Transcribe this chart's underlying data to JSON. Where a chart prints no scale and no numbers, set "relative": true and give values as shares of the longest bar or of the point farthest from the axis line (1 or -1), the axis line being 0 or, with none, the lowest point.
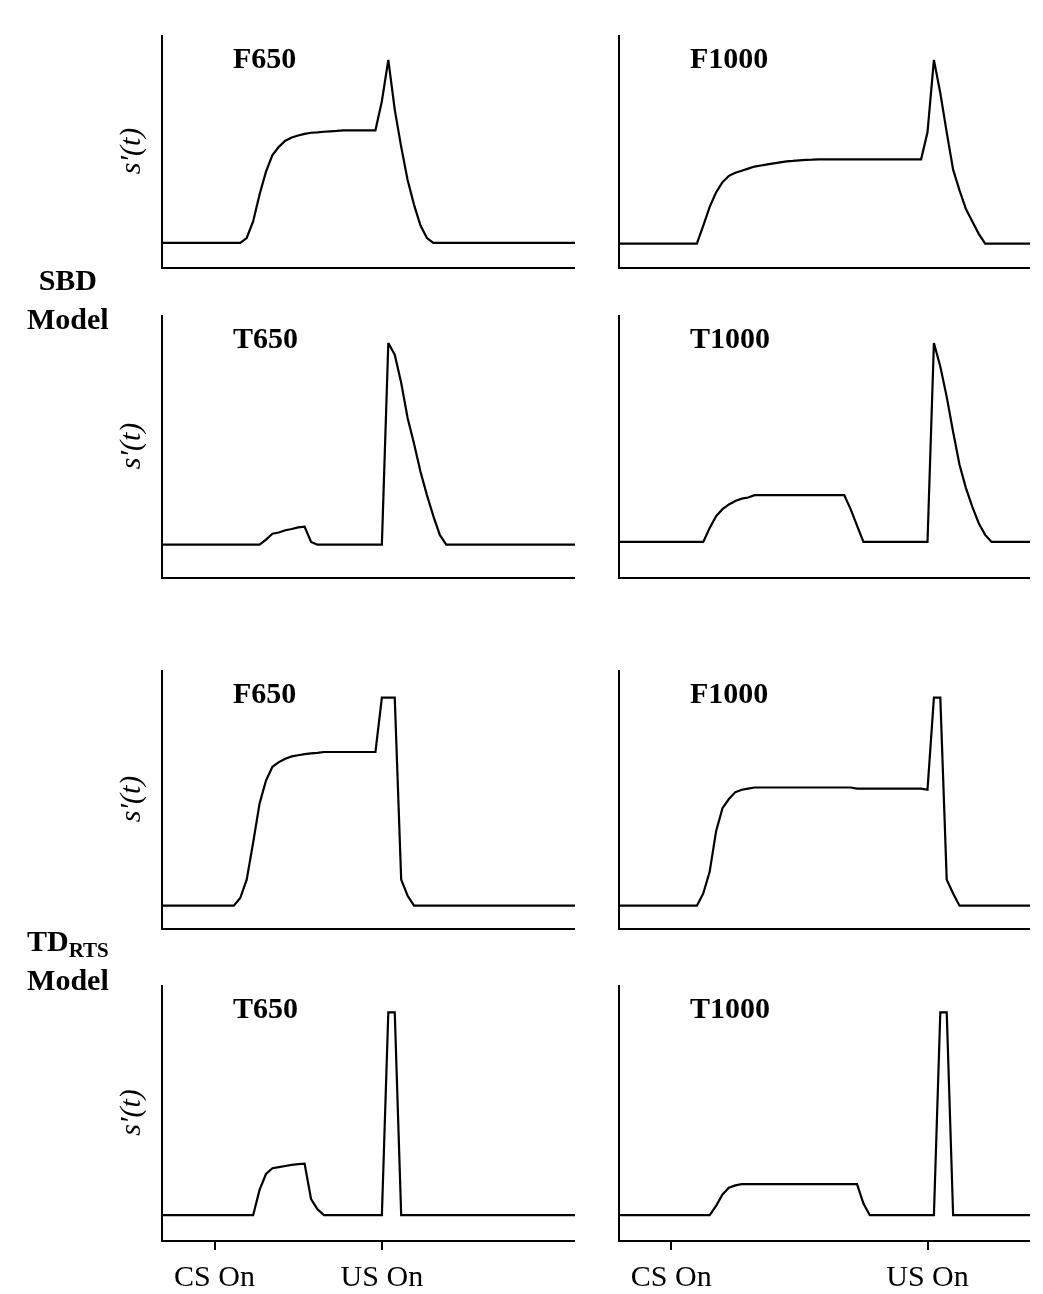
{
  "chart_data": [
    {
      "type": "line",
      "title": "F650",
      "ylabel": "s′(t)",
      "relative": true,
      "color": "#000000",
      "annotations": [
        "SBD Model"
      ],
      "categories": [
        null,
        null,
        null,
        null,
        null,
        null,
        null,
        null,
        null,
        null,
        null,
        null,
        null,
        null,
        null,
        null,
        null,
        null,
        null,
        null,
        null,
        null,
        null,
        null,
        null,
        null,
        null,
        null,
        null,
        null,
        null,
        null,
        null,
        null,
        null,
        null,
        null,
        null,
        null,
        null,
        null,
        null,
        null,
        null,
        null,
        null,
        null,
        null,
        null,
        null,
        null,
        null,
        null,
        null,
        null,
        null,
        null,
        null,
        null,
        null,
        null,
        null,
        null,
        null,
        null
      ],
      "values": [
        0.116,
        0.116,
        0.116,
        0.116,
        0.116,
        0.116,
        0.116,
        0.116,
        0.116,
        0.116,
        0.116,
        0.116,
        0.116,
        0.14,
        0.22,
        0.35,
        0.46,
        0.54,
        0.58,
        0.61,
        0.625,
        0.635,
        0.643,
        0.648,
        0.65,
        0.653,
        0.655,
        0.657,
        0.66,
        0.66,
        0.66,
        0.66,
        0.66,
        0.66,
        0.8,
        1,
        0.76,
        0.58,
        0.42,
        0.3,
        0.2,
        0.14,
        0.116,
        0.116,
        0.116,
        0.116,
        0.116,
        0.116,
        0.116,
        0.116,
        0.116,
        0.116,
        0.116,
        0.116,
        0.116,
        0.116,
        0.116,
        0.116,
        0.116,
        0.116,
        0.116,
        0.116,
        0.116,
        0.116,
        0.116
      ]
    },
    {
      "type": "line",
      "title": "F1000",
      "relative": true,
      "color": "#000000",
      "categories": [
        null,
        null,
        null,
        null,
        null,
        null,
        null,
        null,
        null,
        null,
        null,
        null,
        null,
        null,
        null,
        null,
        null,
        null,
        null,
        null,
        null,
        null,
        null,
        null,
        null,
        null,
        null,
        null,
        null,
        null,
        null,
        null,
        null,
        null,
        null,
        null,
        null,
        null,
        null,
        null,
        null,
        null,
        null,
        null,
        null,
        null,
        null,
        null,
        null,
        null,
        null,
        null,
        null,
        null,
        null,
        null,
        null,
        null,
        null,
        null,
        null,
        null,
        null,
        null,
        null
      ],
      "values": [
        0.113,
        0.113,
        0.113,
        0.113,
        0.113,
        0.113,
        0.113,
        0.113,
        0.113,
        0.113,
        0.113,
        0.113,
        0.113,
        0.2,
        0.29,
        0.36,
        0.41,
        0.44,
        0.455,
        0.465,
        0.475,
        0.485,
        0.49,
        0.495,
        0.5,
        0.505,
        0.51,
        0.512,
        0.515,
        0.517,
        0.518,
        0.52,
        0.52,
        0.52,
        0.52,
        0.52,
        0.52,
        0.52,
        0.52,
        0.52,
        0.52,
        0.52,
        0.52,
        0.52,
        0.52,
        0.52,
        0.52,
        0.52,
        0.65,
        1,
        0.84,
        0.65,
        0.47,
        0.37,
        0.28,
        0.22,
        0.16,
        0.113,
        0.113,
        0.113,
        0.113,
        0.113,
        0.113,
        0.113,
        0.113
      ]
    },
    {
      "type": "line",
      "title": "T650",
      "ylabel": "s′(t)",
      "relative": true,
      "color": "#000000",
      "categories": [
        null,
        null,
        null,
        null,
        null,
        null,
        null,
        null,
        null,
        null,
        null,
        null,
        null,
        null,
        null,
        null,
        null,
        null,
        null,
        null,
        null,
        null,
        null,
        null,
        null,
        null,
        null,
        null,
        null,
        null,
        null,
        null,
        null,
        null,
        null,
        null,
        null,
        null,
        null,
        null,
        null,
        null,
        null,
        null,
        null,
        null,
        null,
        null,
        null,
        null,
        null,
        null,
        null,
        null,
        null,
        null,
        null,
        null,
        null,
        null,
        null,
        null,
        null,
        null,
        null
      ],
      "values": [
        0.138,
        0.138,
        0.138,
        0.138,
        0.138,
        0.138,
        0.138,
        0.138,
        0.138,
        0.138,
        0.138,
        0.138,
        0.138,
        0.138,
        0.138,
        0.138,
        0.16,
        0.185,
        0.19,
        0.2,
        0.205,
        0.212,
        0.215,
        0.15,
        0.138,
        0.138,
        0.138,
        0.138,
        0.138,
        0.138,
        0.138,
        0.138,
        0.138,
        0.138,
        0.138,
        1,
        0.95,
        0.83,
        0.68,
        0.57,
        0.45,
        0.35,
        0.26,
        0.18,
        0.138,
        0.138,
        0.138,
        0.138,
        0.138,
        0.138,
        0.138,
        0.138,
        0.138,
        0.138,
        0.138,
        0.138,
        0.138,
        0.138,
        0.138,
        0.138,
        0.138,
        0.138,
        0.138,
        0.138,
        0.138
      ]
    },
    {
      "type": "line",
      "title": "T1000",
      "relative": true,
      "color": "#000000",
      "categories": [
        null,
        null,
        null,
        null,
        null,
        null,
        null,
        null,
        null,
        null,
        null,
        null,
        null,
        null,
        null,
        null,
        null,
        null,
        null,
        null,
        null,
        null,
        null,
        null,
        null,
        null,
        null,
        null,
        null,
        null,
        null,
        null,
        null,
        null,
        null,
        null,
        null,
        null,
        null,
        null,
        null,
        null,
        null,
        null,
        null,
        null,
        null,
        null,
        null,
        null,
        null,
        null,
        null,
        null,
        null,
        null,
        null,
        null,
        null,
        null,
        null,
        null,
        null,
        null,
        null
      ],
      "values": [
        0.15,
        0.15,
        0.15,
        0.15,
        0.15,
        0.15,
        0.15,
        0.15,
        0.15,
        0.15,
        0.15,
        0.15,
        0.15,
        0.15,
        0.21,
        0.26,
        0.29,
        0.31,
        0.325,
        0.335,
        0.34,
        0.35,
        0.35,
        0.35,
        0.35,
        0.35,
        0.35,
        0.35,
        0.35,
        0.35,
        0.35,
        0.35,
        0.35,
        0.35,
        0.35,
        0.35,
        0.29,
        0.22,
        0.15,
        0.15,
        0.15,
        0.15,
        0.15,
        0.15,
        0.15,
        0.15,
        0.15,
        0.15,
        0.15,
        1,
        0.9,
        0.77,
        0.62,
        0.48,
        0.38,
        0.3,
        0.23,
        0.18,
        0.15,
        0.15,
        0.15,
        0.15,
        0.15,
        0.15,
        0.15
      ]
    },
    {
      "type": "line",
      "title": "F650",
      "ylabel": "s′(t)",
      "relative": true,
      "color": "#000000",
      "annotations": [
        "TD$_{RTS}$ Model"
      ],
      "categories": [
        null,
        null,
        null,
        null,
        null,
        null,
        null,
        null,
        null,
        null,
        null,
        null,
        null,
        null,
        null,
        null,
        null,
        null,
        null,
        null,
        null,
        null,
        null,
        null,
        null,
        null,
        null,
        null,
        null,
        null,
        null,
        null,
        null,
        null,
        null,
        null,
        null,
        null,
        null,
        null,
        null,
        null,
        null,
        null,
        null,
        null,
        null,
        null,
        null,
        null,
        null,
        null,
        null,
        null,
        null,
        null,
        null,
        null,
        null,
        null,
        null,
        null,
        null,
        null,
        null
      ],
      "values": [
        0.097,
        0.097,
        0.097,
        0.097,
        0.097,
        0.097,
        0.097,
        0.097,
        0.097,
        0.097,
        0.097,
        0.097,
        0.13,
        0.21,
        0.37,
        0.54,
        0.64,
        0.7,
        0.72,
        0.735,
        0.745,
        0.75,
        0.755,
        0.758,
        0.76,
        0.764,
        0.764,
        0.764,
        0.764,
        0.764,
        0.764,
        0.764,
        0.764,
        0.764,
        1,
        1,
        1,
        0.21,
        0.14,
        0.097,
        0.097,
        0.097,
        0.097,
        0.097,
        0.097,
        0.097,
        0.097,
        0.097,
        0.097,
        0.097,
        0.097,
        0.097,
        0.097,
        0.097,
        0.097,
        0.097,
        0.097,
        0.097,
        0.097,
        0.097,
        0.097,
        0.097,
        0.097,
        0.097,
        0.097
      ]
    },
    {
      "type": "line",
      "title": "F1000",
      "relative": true,
      "color": "#000000",
      "categories": [
        null,
        null,
        null,
        null,
        null,
        null,
        null,
        null,
        null,
        null,
        null,
        null,
        null,
        null,
        null,
        null,
        null,
        null,
        null,
        null,
        null,
        null,
        null,
        null,
        null,
        null,
        null,
        null,
        null,
        null,
        null,
        null,
        null,
        null,
        null,
        null,
        null,
        null,
        null,
        null,
        null,
        null,
        null,
        null,
        null,
        null,
        null,
        null,
        null,
        null,
        null,
        null,
        null,
        null,
        null,
        null,
        null,
        null,
        null,
        null,
        null,
        null,
        null,
        null,
        null
      ],
      "values": [
        0.097,
        0.097,
        0.097,
        0.097,
        0.097,
        0.097,
        0.097,
        0.097,
        0.097,
        0.097,
        0.097,
        0.097,
        0.097,
        0.15,
        0.245,
        0.42,
        0.52,
        0.56,
        0.59,
        0.6,
        0.605,
        0.61,
        0.61,
        0.61,
        0.61,
        0.61,
        0.61,
        0.61,
        0.61,
        0.61,
        0.61,
        0.61,
        0.61,
        0.61,
        0.61,
        0.61,
        0.61,
        0.605,
        0.605,
        0.605,
        0.605,
        0.605,
        0.605,
        0.605,
        0.605,
        0.605,
        0.605,
        0.605,
        0.6,
        1,
        1,
        0.21,
        0.15,
        0.097,
        0.097,
        0.097,
        0.097,
        0.097,
        0.097,
        0.097,
        0.097,
        0.097,
        0.097,
        0.097,
        0.097
      ]
    },
    {
      "type": "line",
      "title": "T650",
      "ylabel": "s′(t)",
      "relative": true,
      "color": "#000000",
      "categories": [
        null,
        null,
        null,
        null,
        null,
        null,
        null,
        null,
        "CS On",
        null,
        null,
        null,
        null,
        null,
        null,
        null,
        null,
        null,
        null,
        null,
        null,
        null,
        null,
        null,
        null,
        null,
        null,
        null,
        null,
        null,
        null,
        null,
        null,
        null,
        "US On",
        null,
        null,
        null,
        null,
        null,
        null,
        null,
        null,
        null,
        null,
        null,
        null,
        null,
        null,
        null,
        null,
        null,
        null,
        null,
        null,
        null,
        null,
        null,
        null,
        null,
        null,
        null,
        null,
        null,
        null
      ],
      "values": [
        0.109,
        0.109,
        0.109,
        0.109,
        0.109,
        0.109,
        0.109,
        0.109,
        0.109,
        0.109,
        0.109,
        0.109,
        0.109,
        0.109,
        0.109,
        0.22,
        0.29,
        0.315,
        0.32,
        0.325,
        0.33,
        0.333,
        0.335,
        0.18,
        0.135,
        0.109,
        0.109,
        0.109,
        0.109,
        0.109,
        0.109,
        0.109,
        0.109,
        0.109,
        0.109,
        1,
        1,
        0.109,
        0.109,
        0.109,
        0.109,
        0.109,
        0.109,
        0.109,
        0.109,
        0.109,
        0.109,
        0.109,
        0.109,
        0.109,
        0.109,
        0.109,
        0.109,
        0.109,
        0.109,
        0.109,
        0.109,
        0.109,
        0.109,
        0.109,
        0.109,
        0.109,
        0.109,
        0.109,
        0.109
      ]
    },
    {
      "type": "line",
      "title": "T1000",
      "relative": true,
      "color": "#000000",
      "categories": [
        null,
        null,
        null,
        null,
        null,
        null,
        null,
        null,
        "CS On",
        null,
        null,
        null,
        null,
        null,
        null,
        null,
        null,
        null,
        null,
        null,
        null,
        null,
        null,
        null,
        null,
        null,
        null,
        null,
        null,
        null,
        null,
        null,
        null,
        null,
        null,
        null,
        null,
        null,
        null,
        null,
        null,
        null,
        null,
        null,
        null,
        null,
        null,
        null,
        "US On",
        null,
        null,
        null,
        null,
        null,
        null,
        null,
        null,
        null,
        null,
        null,
        null,
        null,
        null,
        null,
        null
      ],
      "values": [
        0.109,
        0.109,
        0.109,
        0.109,
        0.109,
        0.109,
        0.109,
        0.109,
        0.109,
        0.109,
        0.109,
        0.109,
        0.109,
        0.109,
        0.109,
        0.15,
        0.2,
        0.23,
        0.24,
        0.245,
        0.245,
        0.245,
        0.245,
        0.245,
        0.245,
        0.245,
        0.245,
        0.245,
        0.245,
        0.245,
        0.245,
        0.245,
        0.245,
        0.245,
        0.245,
        0.245,
        0.245,
        0.245,
        0.16,
        0.109,
        0.109,
        0.109,
        0.109,
        0.109,
        0.109,
        0.109,
        0.109,
        0.109,
        0.109,
        0.109,
        1,
        1,
        0.109,
        0.109,
        0.109,
        0.109,
        0.109,
        0.109,
        0.109,
        0.109,
        0.109,
        0.109,
        0.109,
        0.109,
        0.109
      ]
    }
  ]
}
